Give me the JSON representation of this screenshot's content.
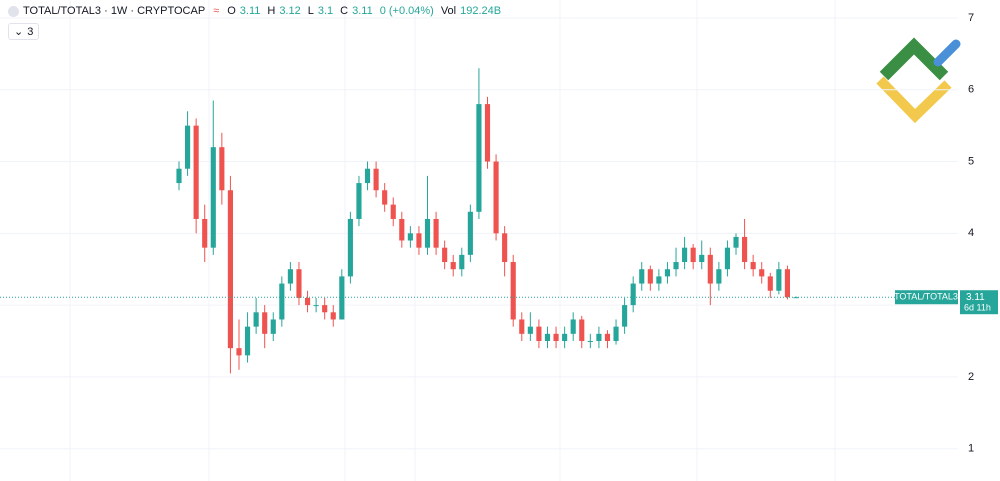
{
  "chart_data": {
    "type": "candlestick",
    "title": "TOTAL/TOTAL3 · 1W · CRYPTOCAP",
    "ohlc_labels": [
      "O",
      "H",
      "L",
      "C"
    ],
    "change": "0 (+0.04%)",
    "volume_label": "Vol",
    "volume": "192.24B",
    "indicator_count": 3,
    "symbol": "TOTAL/TOTAL3",
    "countdown": "6d 11h",
    "up_color": "#26a69a",
    "down_color": "#ef5350",
    "ylim": [
      0.55,
      7.25
    ],
    "yticks": [
      1,
      2,
      3,
      4,
      5,
      6,
      7
    ],
    "grid": true,
    "open": [
      4.7,
      4.9,
      5.5,
      4.2,
      3.8,
      5.2,
      4.6,
      2.4,
      2.3,
      2.7,
      2.9,
      2.6,
      2.8,
      3.3,
      3.5,
      3.1,
      3.0,
      3.0,
      2.9,
      2.8,
      3.4,
      4.2,
      4.7,
      4.9,
      4.6,
      4.4,
      4.2,
      3.9,
      4.0,
      3.8,
      4.2,
      3.8,
      3.6,
      3.5,
      3.7,
      4.3,
      5.8,
      5.0,
      4.0,
      3.6,
      2.8,
      2.6,
      2.7,
      2.5,
      2.6,
      2.5,
      2.6,
      2.8,
      2.5,
      2.5,
      2.6,
      2.5,
      2.7,
      3.0,
      3.3,
      3.5,
      3.3,
      3.4,
      3.5,
      3.6,
      3.8,
      3.6,
      3.7,
      3.3,
      3.5,
      3.8,
      3.95,
      3.6,
      3.5,
      3.4,
      3.2,
      3.5,
      3.11
    ],
    "high": [
      5.0,
      5.7,
      5.6,
      4.4,
      5.85,
      5.4,
      4.8,
      2.8,
      2.9,
      3.1,
      3.0,
      2.9,
      3.4,
      3.6,
      3.6,
      3.2,
      3.1,
      3.1,
      3.0,
      3.5,
      4.3,
      4.8,
      5.0,
      5.0,
      4.7,
      4.5,
      4.3,
      4.1,
      4.1,
      4.8,
      4.3,
      3.9,
      3.7,
      3.8,
      4.4,
      6.3,
      5.9,
      5.1,
      4.1,
      3.7,
      2.9,
      2.9,
      2.8,
      2.7,
      2.7,
      2.7,
      2.9,
      2.85,
      2.6,
      2.7,
      2.65,
      2.8,
      3.1,
      3.4,
      3.6,
      3.55,
      3.5,
      3.6,
      3.8,
      3.95,
      3.85,
      3.9,
      3.8,
      3.6,
      3.9,
      4.0,
      4.2,
      3.7,
      3.6,
      3.45,
      3.6,
      3.55,
      3.12
    ],
    "low": [
      4.6,
      4.8,
      4.0,
      3.6,
      3.7,
      4.4,
      2.05,
      2.1,
      2.2,
      2.6,
      2.4,
      2.5,
      2.7,
      3.2,
      3.0,
      2.9,
      2.9,
      2.8,
      2.7,
      2.8,
      3.3,
      4.1,
      4.6,
      4.5,
      4.3,
      4.1,
      3.8,
      3.8,
      3.7,
      3.7,
      3.7,
      3.5,
      3.4,
      3.4,
      3.6,
      4.2,
      4.9,
      3.9,
      3.4,
      2.7,
      2.5,
      2.5,
      2.4,
      2.4,
      2.4,
      2.4,
      2.5,
      2.4,
      2.4,
      2.4,
      2.4,
      2.45,
      2.6,
      2.9,
      3.2,
      3.2,
      3.2,
      3.3,
      3.4,
      3.5,
      3.5,
      3.5,
      3.0,
      3.2,
      3.4,
      3.7,
      3.5,
      3.4,
      3.3,
      3.1,
      3.15,
      3.08,
      3.1
    ],
    "close": [
      4.9,
      5.5,
      4.2,
      3.8,
      5.2,
      4.6,
      2.4,
      2.3,
      2.7,
      2.9,
      2.6,
      2.8,
      3.3,
      3.5,
      3.1,
      3.0,
      3.0,
      2.9,
      2.8,
      3.4,
      4.2,
      4.7,
      4.9,
      4.6,
      4.4,
      4.2,
      3.9,
      4.0,
      3.8,
      4.2,
      3.8,
      3.6,
      3.5,
      3.7,
      4.3,
      5.8,
      5.0,
      4.0,
      3.6,
      2.8,
      2.6,
      2.7,
      2.5,
      2.6,
      2.5,
      2.6,
      2.8,
      2.5,
      2.5,
      2.6,
      2.5,
      2.7,
      3.0,
      3.3,
      3.5,
      3.3,
      3.4,
      3.5,
      3.6,
      3.8,
      3.6,
      3.7,
      3.3,
      3.5,
      3.8,
      3.95,
      3.6,
      3.5,
      3.4,
      3.2,
      3.5,
      3.11,
      3.11
    ]
  }
}
